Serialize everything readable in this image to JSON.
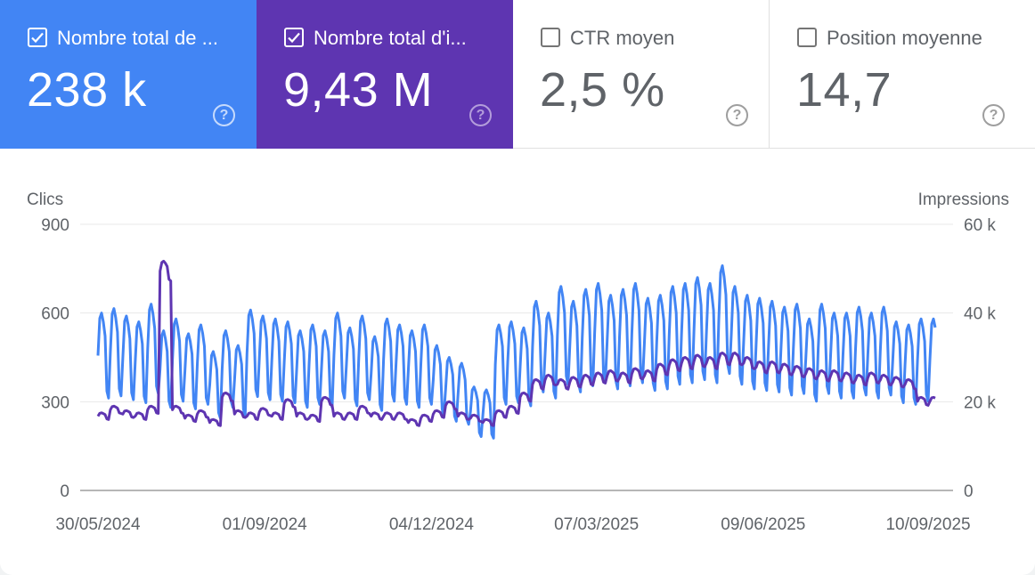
{
  "metrics": [
    {
      "label": "Nombre total de ...",
      "value": "238 k",
      "checked": true,
      "color": "#4285f4"
    },
    {
      "label": "Nombre total d'i...",
      "value": "9,43 M",
      "checked": true,
      "color": "#5e35b1"
    },
    {
      "label": "CTR moyen",
      "value": "2,5 %",
      "checked": false
    },
    {
      "label": "Position moyenne",
      "value": "14,7",
      "checked": false
    }
  ],
  "help_glyph": "?",
  "chart_data": {
    "type": "line",
    "left_axis_title": "Clics",
    "right_axis_title": "Impressions",
    "y_left_ticks": [
      "900",
      "600",
      "300",
      "0"
    ],
    "y_right_ticks": [
      "60 k",
      "40 k",
      "20 k",
      "0"
    ],
    "y_left_range": [
      0,
      900
    ],
    "y_right_range": [
      0,
      60000
    ],
    "x_tick_labels": [
      "30/05/2024",
      "01/09/2024",
      "04/12/2024",
      "07/03/2025",
      "09/06/2025",
      "10/09/2025"
    ],
    "x_start": "2024-05-30",
    "x_end": "2025-09-14",
    "series": [
      {
        "name": "Nombre total de clics",
        "axis": "left",
        "color": "#4285f4",
        "weekly_peaks": [
          600,
          615,
          590,
          570,
          630,
          540,
          580,
          530,
          560,
          470,
          540,
          490,
          610,
          590,
          580,
          570,
          540,
          560,
          540,
          600,
          550,
          590,
          520,
          580,
          560,
          540,
          560,
          490,
          450,
          430,
          350,
          340,
          560,
          570,
          550,
          640,
          600,
          690,
          640,
          680,
          700,
          660,
          680,
          700,
          650,
          660,
          690,
          700,
          720,
          700,
          760,
          690,
          660,
          650,
          640,
          620,
          630,
          580,
          630,
          600,
          600,
          620,
          600,
          620,
          570,
          560,
          580
        ]
      },
      {
        "name": "Nombre total d'impressions",
        "axis": "right",
        "color": "#5e35b1",
        "weekly_peaks": [
          17500,
          19000,
          18000,
          17500,
          19000,
          51700,
          19000,
          17000,
          18000,
          16000,
          22000,
          18000,
          17500,
          18500,
          17500,
          20500,
          17500,
          17000,
          21000,
          17500,
          17500,
          19000,
          17500,
          17500,
          17500,
          16000,
          17000,
          18000,
          20000,
          17500,
          17000,
          16000,
          18000,
          19000,
          22000,
          25000,
          26000,
          25000,
          25500,
          26000,
          26500,
          27000,
          26500,
          27500,
          27000,
          28500,
          29500,
          30000,
          30500,
          30000,
          31000,
          31000,
          30000,
          29000,
          29000,
          28500,
          28000,
          27500,
          27000,
          27000,
          26500,
          26000,
          26500,
          26000,
          25500,
          25000,
          21000
        ]
      }
    ]
  }
}
